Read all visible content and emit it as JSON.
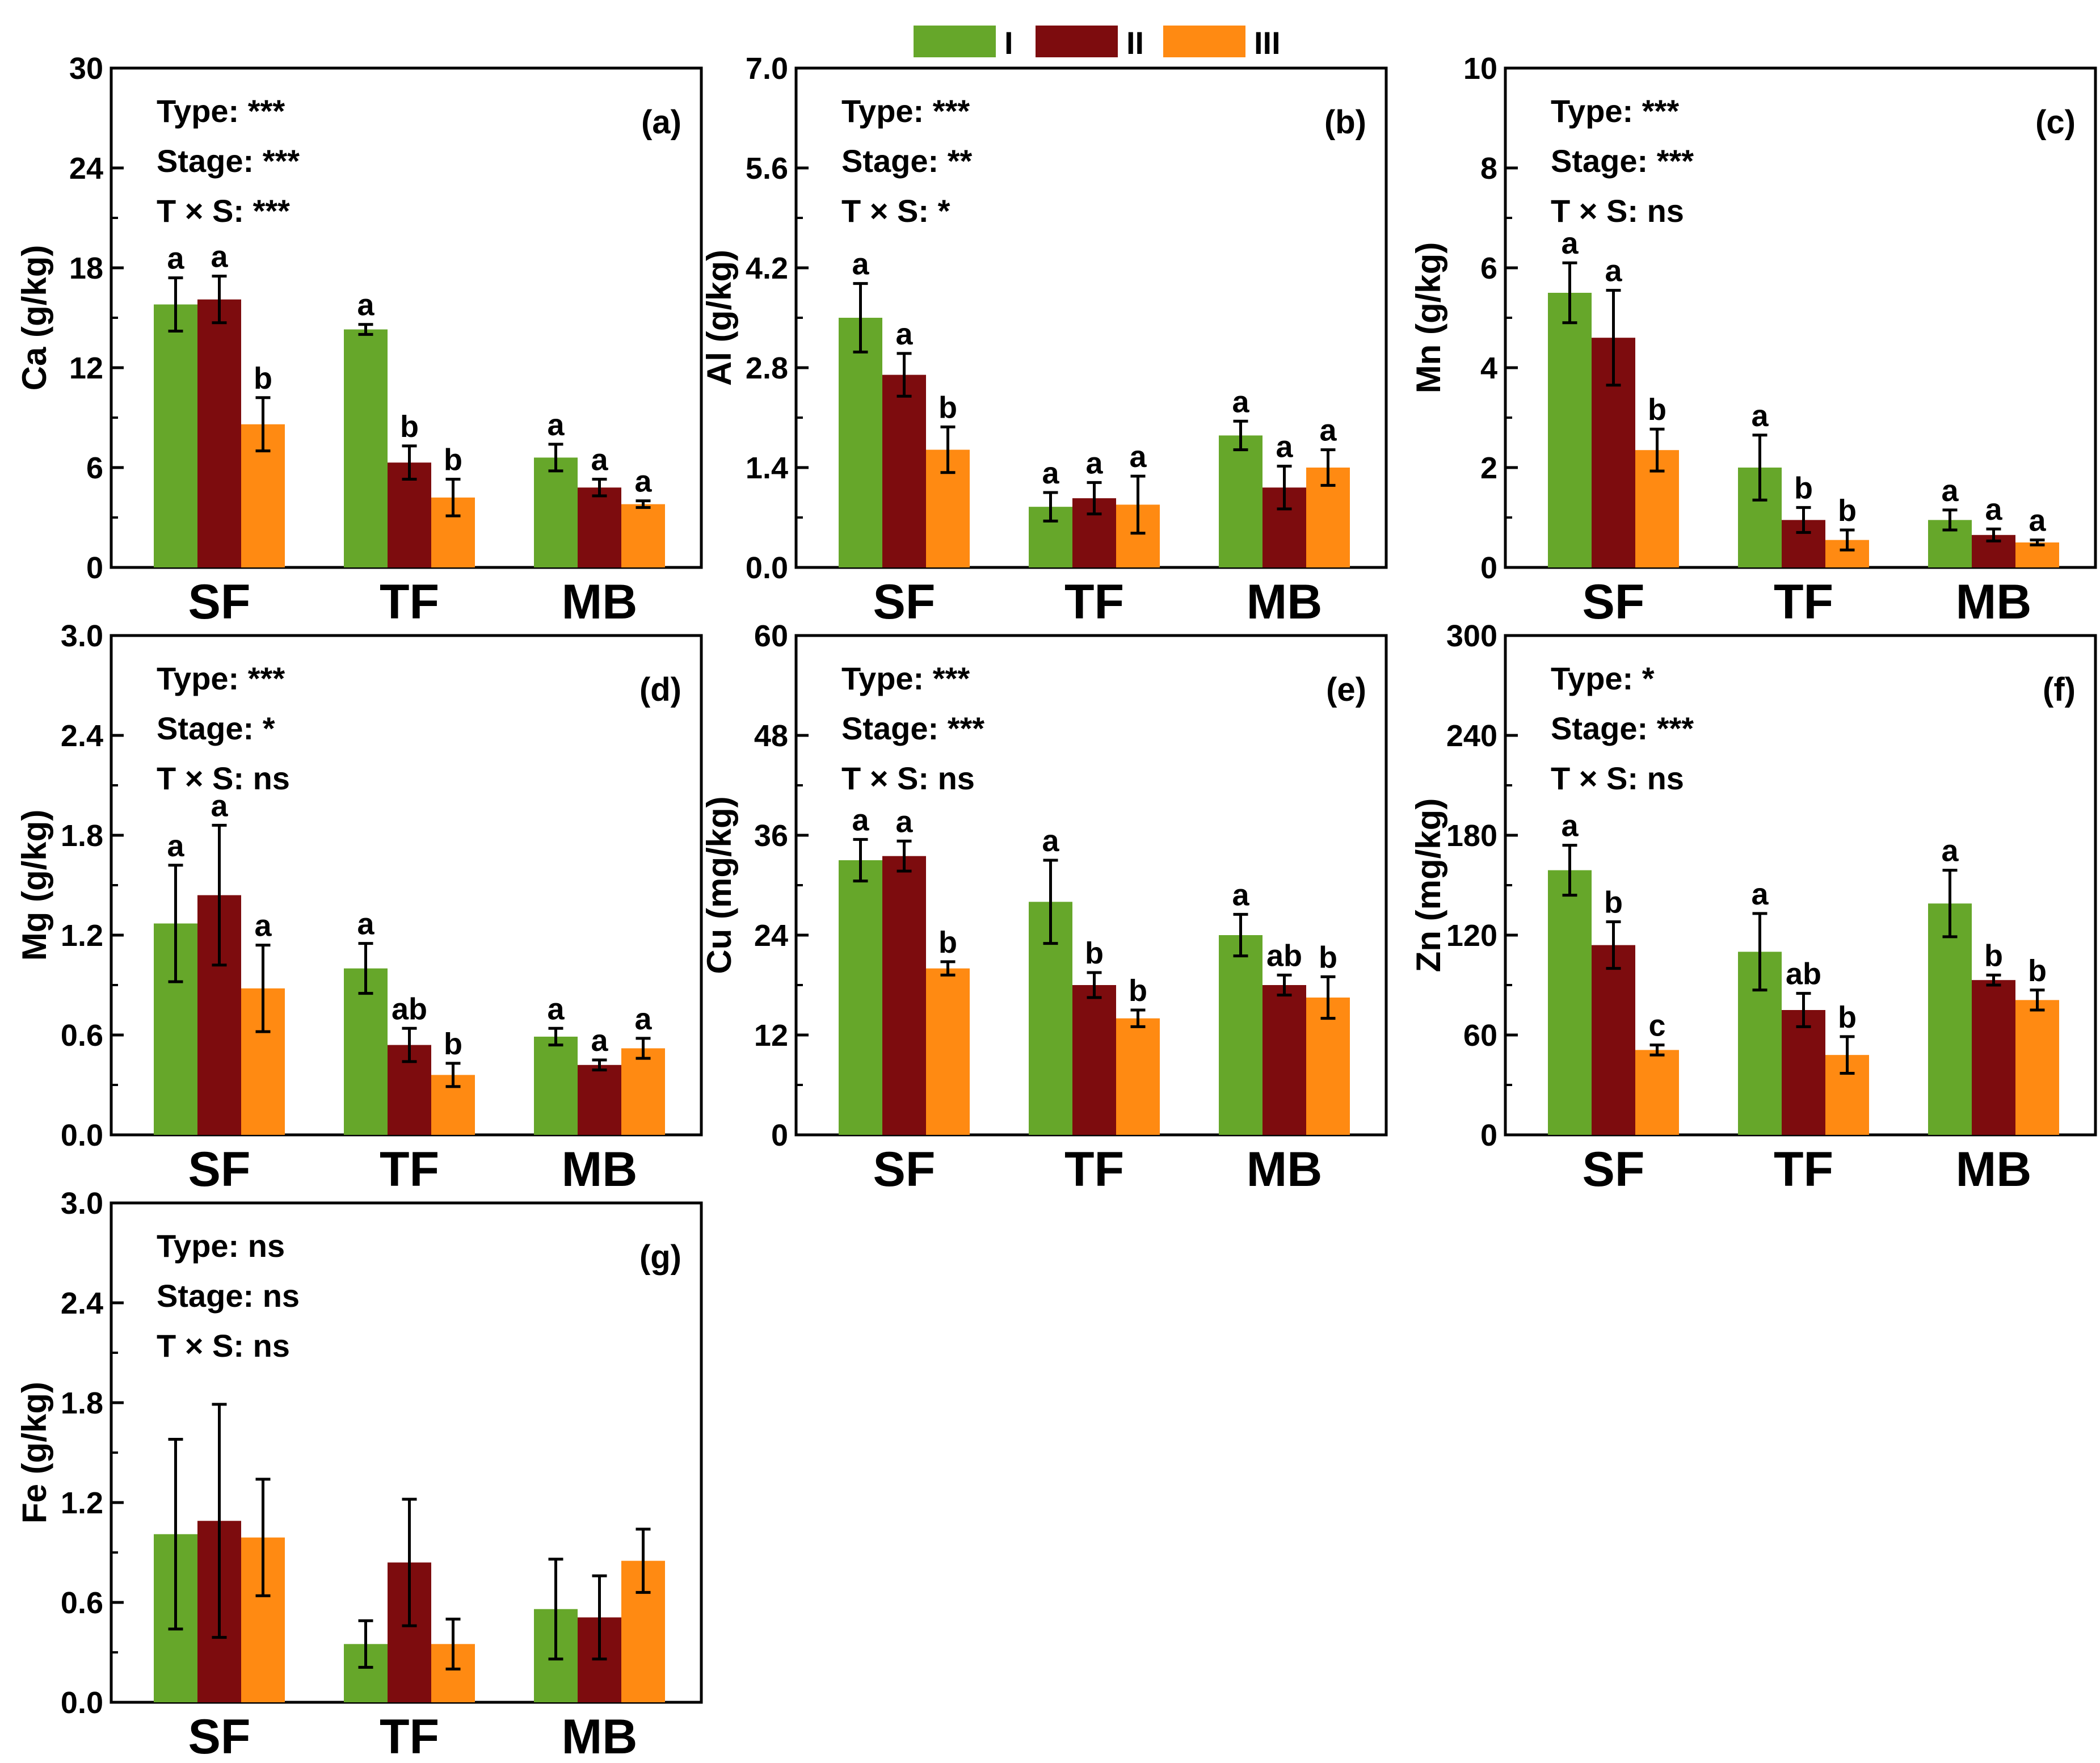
{
  "figure": {
    "legend": {
      "entries": [
        {
          "label": "I",
          "color": "#66a72a"
        },
        {
          "label": "II",
          "color": "#7d0c0e"
        },
        {
          "label": "III",
          "color": "#ff8a12"
        }
      ]
    }
  },
  "chart_data": [
    {
      "type": "bar",
      "panel": "(a)",
      "ylabel": "Ca (g/kg)",
      "ylim": [
        0,
        30
      ],
      "yticks": [
        "0",
        "6",
        "12",
        "18",
        "24",
        "30"
      ],
      "categories": [
        "SF",
        "TF",
        "MB"
      ],
      "stats": [
        "Type: ***",
        "Stage: ***",
        "T × S: ***"
      ],
      "series": [
        {
          "name": "I",
          "values": [
            15.8,
            14.3,
            6.6
          ],
          "errors": [
            1.6,
            0.3,
            0.8
          ],
          "letters": [
            "a",
            "a",
            "a"
          ]
        },
        {
          "name": "II",
          "values": [
            16.1,
            6.3,
            4.8
          ],
          "errors": [
            1.4,
            1.0,
            0.5
          ],
          "letters": [
            "a",
            "b",
            "a"
          ]
        },
        {
          "name": "III",
          "values": [
            8.6,
            4.2,
            3.8
          ],
          "errors": [
            1.6,
            1.1,
            0.2
          ],
          "letters": [
            "b",
            "b",
            "a"
          ]
        }
      ]
    },
    {
      "type": "bar",
      "panel": "(b)",
      "ylabel": "Al (g/kg)",
      "ylim": [
        0,
        7.0
      ],
      "yticks": [
        "0.0",
        "1.4",
        "2.8",
        "4.2",
        "5.6",
        "7.0"
      ],
      "categories": [
        "SF",
        "TF",
        "MB"
      ],
      "stats": [
        "Type: ***",
        "Stage: **",
        "T × S: *"
      ],
      "series": [
        {
          "name": "I",
          "values": [
            3.5,
            0.85,
            1.85
          ],
          "errors": [
            0.48,
            0.2,
            0.2
          ],
          "letters": [
            "a",
            "a",
            "a"
          ]
        },
        {
          "name": "II",
          "values": [
            2.7,
            0.97,
            1.12
          ],
          "errors": [
            0.3,
            0.22,
            0.3
          ],
          "letters": [
            "a",
            "a",
            "a"
          ]
        },
        {
          "name": "III",
          "values": [
            1.65,
            0.88,
            1.4
          ],
          "errors": [
            0.32,
            0.4,
            0.25
          ],
          "letters": [
            "b",
            "a",
            "a"
          ]
        }
      ]
    },
    {
      "type": "bar",
      "panel": "(c)",
      "ylabel": "Mn (g/kg)",
      "ylim": [
        0,
        10
      ],
      "yticks": [
        "0",
        "2",
        "4",
        "6",
        "8",
        "10"
      ],
      "categories": [
        "SF",
        "TF",
        "MB"
      ],
      "stats": [
        "Type: ***",
        "Stage: ***",
        "T × S: ns"
      ],
      "series": [
        {
          "name": "I",
          "values": [
            5.5,
            2.0,
            0.95
          ],
          "errors": [
            0.6,
            0.65,
            0.2
          ],
          "letters": [
            "a",
            "a",
            "a"
          ]
        },
        {
          "name": "II",
          "values": [
            4.6,
            0.95,
            0.65
          ],
          "errors": [
            0.95,
            0.25,
            0.12
          ],
          "letters": [
            "a",
            "b",
            "a"
          ]
        },
        {
          "name": "III",
          "values": [
            2.35,
            0.55,
            0.5
          ],
          "errors": [
            0.42,
            0.2,
            0.05
          ],
          "letters": [
            "b",
            "b",
            "a"
          ]
        }
      ]
    },
    {
      "type": "bar",
      "panel": "(d)",
      "ylabel": "Mg (g/kg)",
      "ylim": [
        0,
        3.0
      ],
      "yticks": [
        "0.0",
        "0.6",
        "1.2",
        "1.8",
        "2.4",
        "3.0"
      ],
      "categories": [
        "SF",
        "TF",
        "MB"
      ],
      "stats": [
        "Type: ***",
        "Stage: *",
        "T × S: ns"
      ],
      "series": [
        {
          "name": "I",
          "values": [
            1.27,
            1.0,
            0.59
          ],
          "errors": [
            0.35,
            0.15,
            0.05
          ],
          "letters": [
            "a",
            "a",
            "a"
          ]
        },
        {
          "name": "II",
          "values": [
            1.44,
            0.54,
            0.42
          ],
          "errors": [
            0.42,
            0.1,
            0.03
          ],
          "letters": [
            "a",
            "ab",
            "a"
          ]
        },
        {
          "name": "III",
          "values": [
            0.88,
            0.36,
            0.52
          ],
          "errors": [
            0.26,
            0.07,
            0.06
          ],
          "letters": [
            "a",
            "b",
            "a"
          ]
        }
      ]
    },
    {
      "type": "bar",
      "panel": "(e)",
      "ylabel": "Cu (mg/kg)",
      "ylim": [
        0,
        60
      ],
      "yticks": [
        "0",
        "12",
        "24",
        "36",
        "48",
        "60"
      ],
      "categories": [
        "SF",
        "TF",
        "MB"
      ],
      "stats": [
        "Type: ***",
        "Stage: ***",
        "T × S: ns"
      ],
      "series": [
        {
          "name": "I",
          "values": [
            33.0,
            28.0,
            24.0
          ],
          "errors": [
            2.5,
            5.0,
            2.5
          ],
          "letters": [
            "a",
            "a",
            "a"
          ]
        },
        {
          "name": "II",
          "values": [
            33.5,
            18.0,
            18.0
          ],
          "errors": [
            1.8,
            1.5,
            1.2
          ],
          "letters": [
            "a",
            "b",
            "ab"
          ]
        },
        {
          "name": "III",
          "values": [
            20.0,
            14.0,
            16.5
          ],
          "errors": [
            0.8,
            1.0,
            2.5
          ],
          "letters": [
            "b",
            "b",
            "b"
          ]
        }
      ]
    },
    {
      "type": "bar",
      "panel": "(f)",
      "ylabel": "Zn (mg/kg)",
      "ylim": [
        0,
        300
      ],
      "yticks": [
        "0",
        "60",
        "120",
        "180",
        "240",
        "300"
      ],
      "categories": [
        "SF",
        "TF",
        "MB"
      ],
      "stats": [
        "Type: *",
        "Stage: ***",
        "T × S: ns"
      ],
      "series": [
        {
          "name": "I",
          "values": [
            159,
            110,
            139
          ],
          "errors": [
            15,
            23,
            20
          ],
          "letters": [
            "a",
            "a",
            "a"
          ]
        },
        {
          "name": "II",
          "values": [
            114,
            75,
            93
          ],
          "errors": [
            14,
            10,
            3
          ],
          "letters": [
            "b",
            "ab",
            "b"
          ]
        },
        {
          "name": "III",
          "values": [
            51,
            48,
            81
          ],
          "errors": [
            3,
            11,
            6
          ],
          "letters": [
            "c",
            "b",
            "b"
          ]
        }
      ]
    },
    {
      "type": "bar",
      "panel": "(g)",
      "ylabel": "Fe (g/kg)",
      "ylim": [
        0,
        3.0
      ],
      "yticks": [
        "0.0",
        "0.6",
        "1.2",
        "1.8",
        "2.4",
        "3.0"
      ],
      "categories": [
        "SF",
        "TF",
        "MB"
      ],
      "stats": [
        "Type: ns",
        "Stage: ns",
        "T × S: ns"
      ],
      "series": [
        {
          "name": "I",
          "values": [
            1.01,
            0.35,
            0.56
          ],
          "errors": [
            0.57,
            0.14,
            0.3
          ],
          "letters": [
            "",
            "",
            ""
          ]
        },
        {
          "name": "II",
          "values": [
            1.09,
            0.84,
            0.51
          ],
          "errors": [
            0.7,
            0.38,
            0.25
          ],
          "letters": [
            "",
            "",
            ""
          ]
        },
        {
          "name": "III",
          "values": [
            0.99,
            0.35,
            0.85
          ],
          "errors": [
            0.35,
            0.15,
            0.19
          ],
          "letters": [
            "",
            "",
            ""
          ]
        }
      ]
    }
  ]
}
